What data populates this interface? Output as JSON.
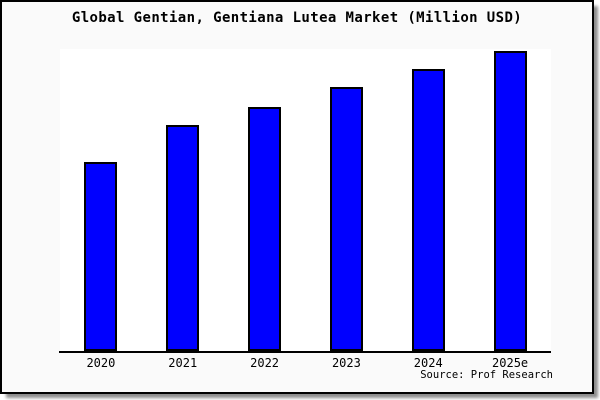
{
  "title": "Global Gentian, Gentiana Lutea Market (Million USD)",
  "source_credit": "Source: Prof Research",
  "colors": {
    "bar_fill": "#0000ff",
    "bar_border": "#000000",
    "frame_background": "#fafafa",
    "plot_background": "#ffffff",
    "axis": "#000000"
  },
  "chart_data": {
    "type": "bar",
    "title": "Global Gentian, Gentiana Lutea Market (Million USD)",
    "categories": [
      "2020",
      "2021",
      "2022",
      "2023",
      "2024",
      "2025e"
    ],
    "values": [
      63,
      75.5,
      81.5,
      88,
      94,
      100
    ],
    "values_note": "y-axis has no tick labels; values are relative estimates normalized to 2025e = 100",
    "xlabel": "",
    "ylabel": "",
    "ylim": [
      0,
      100.7
    ],
    "grid": false,
    "legend": false,
    "y_axis_visible": false,
    "bar_color": "#0000ff",
    "bar_border_color": "#000000",
    "annotation": "Source: Prof Research"
  }
}
